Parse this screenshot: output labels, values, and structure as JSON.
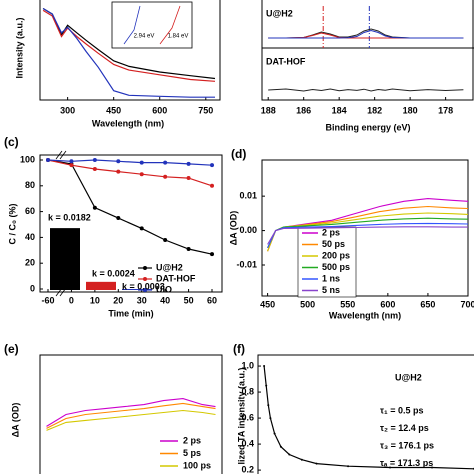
{
  "chart_data": [
    {
      "type": "line",
      "y_label": "Intensity (a.u.)",
      "x_label": "Wavelength (nm)",
      "xlim": [
        210,
        780
      ],
      "xticks": [
        300,
        450,
        600,
        750
      ],
      "ylim": [
        0,
        1.05
      ],
      "x": [
        220,
        250,
        280,
        300,
        330,
        360,
        400,
        450,
        500,
        600,
        700,
        780
      ],
      "series": [
        {
          "color": "#000000",
          "values": [
            0.98,
            0.92,
            0.7,
            0.8,
            0.72,
            0.64,
            0.54,
            0.42,
            0.36,
            0.3,
            0.26,
            0.23
          ]
        },
        {
          "color": "#d42020",
          "values": [
            0.96,
            0.9,
            0.68,
            0.77,
            0.68,
            0.6,
            0.5,
            0.38,
            0.32,
            0.27,
            0.22,
            0.2
          ]
        },
        {
          "color": "#2233bb",
          "values": [
            0.98,
            0.92,
            0.72,
            0.78,
            0.66,
            0.52,
            0.35,
            0.1,
            0.05,
            0.04,
            0.03,
            0.03
          ]
        }
      ],
      "annotations": [
        "2.94 eV",
        "1.84 eV"
      ]
    },
    {
      "type": "line",
      "x_label": "Binding energy (eV)",
      "xlim": [
        188.35,
        176.4
      ],
      "xticks": [
        188,
        186,
        184,
        182,
        180,
        178
      ],
      "ylim": [
        0,
        10
      ],
      "x": [
        188,
        187,
        186,
        185.5,
        185,
        184.5,
        184,
        183.5,
        183,
        182.6,
        182.2,
        181.8,
        181.4,
        181,
        180,
        179,
        178,
        177
      ],
      "series": [
        {
          "name": "U@H2",
          "color": "#222222",
          "values": [
            6.2,
            6.2,
            6.25,
            6.5,
            6.8,
            6.6,
            6.3,
            6.3,
            6.5,
            6.9,
            7.1,
            6.9,
            6.5,
            6.3,
            6.2,
            6.2,
            6.2,
            6.2
          ]
        },
        {
          "color": "#d42020",
          "values": [
            6.2,
            6.2,
            6.25,
            6.45,
            6.7,
            6.5,
            6.25,
            6.2,
            6.2,
            6.2,
            6.2,
            6.2,
            6.2,
            6.2,
            6.2,
            6.2,
            6.2,
            6.2
          ]
        },
        {
          "color": "#2233bb",
          "values": [
            6.2,
            6.2,
            6.2,
            6.2,
            6.2,
            6.2,
            6.2,
            6.22,
            6.35,
            6.75,
            6.95,
            6.75,
            6.4,
            6.25,
            6.2,
            6.2,
            6.2,
            6.2
          ]
        },
        {
          "name": "DAT-HOF",
          "color": "#222222",
          "values": [
            1.0,
            1.1,
            0.9,
            1.05,
            0.95,
            1.1,
            0.92,
            1.04,
            0.96,
            1.08,
            0.9,
            1.05,
            0.97,
            1.1,
            0.93,
            1.04,
            0.95,
            1.02
          ]
        }
      ],
      "peaks": [
        {
          "value": 184.9,
          "color": "#d42020"
        },
        {
          "value": 182.3,
          "color": "#2233bb"
        }
      ]
    },
    {
      "type": "line",
      "panel_label": "(c)",
      "y_label": "C / C₀ (%)",
      "x_label": "Time (min)",
      "categories": [
        "-60",
        "0",
        "10",
        "20",
        "30",
        "40",
        "50",
        "60"
      ],
      "ylim": [
        0,
        100
      ],
      "yticks": [
        0,
        20,
        40,
        60,
        80,
        100
      ],
      "series": [
        {
          "name": "U@H2",
          "color": "#000000",
          "values": [
            100,
            97,
            63,
            55,
            47,
            38,
            31,
            27
          ]
        },
        {
          "name": "DAT-HOF",
          "color": "#d42020",
          "values": [
            100,
            96,
            93,
            91,
            89,
            87,
            86,
            80
          ]
        },
        {
          "name": "UiO",
          "color": "#2233bb",
          "values": [
            100,
            99,
            100,
            99,
            98,
            98,
            97,
            96
          ]
        }
      ]
    },
    {
      "type": "bar",
      "values": [
        0.0182,
        0.0024,
        0.0003
      ],
      "value_labels": [
        "k = 0.0182",
        "k = 0.0024",
        "k = 0.0003"
      ],
      "colors": [
        "#000000",
        "#d42020",
        "#2233bb"
      ],
      "ylim": [
        0,
        0.02
      ]
    },
    {
      "type": "line",
      "panel_label": "(d)",
      "y_label": "ΔA (OD)",
      "x_label": "Wavelength (nm)",
      "xlim": [
        443,
        700
      ],
      "xticks": [
        450,
        500,
        550,
        600,
        650,
        700
      ],
      "ylim": [
        -0.019,
        0.0205
      ],
      "yticks": [
        -0.01,
        {
          "value": 0,
          "label": "0.00"
        },
        0.01
      ],
      "x": [
        450,
        460,
        470,
        500,
        530,
        560,
        590,
        620,
        650,
        680,
        700
      ],
      "series": [
        {
          "name": "2 ps",
          "color": "#cc00cc",
          "values": [
            -0.006,
            0.0,
            0.001,
            0.002,
            0.003,
            0.005,
            0.007,
            0.0085,
            0.0093,
            0.0088,
            0.0085
          ]
        },
        {
          "name": "50 ps",
          "color": "#ff8800",
          "values": [
            -0.006,
            0.0,
            0.001,
            0.0018,
            0.0026,
            0.004,
            0.0055,
            0.0065,
            0.007,
            0.0066,
            0.0064
          ]
        },
        {
          "name": "200 ps",
          "color": "#d4c800",
          "values": [
            -0.006,
            0.0,
            0.001,
            0.0016,
            0.0022,
            0.0032,
            0.0042,
            0.0048,
            0.0051,
            0.0049,
            0.0047
          ]
        },
        {
          "name": "500 ps",
          "color": "#22aa22",
          "values": [
            -0.005,
            0.0,
            0.001,
            0.0014,
            0.0018,
            0.0024,
            0.003,
            0.0034,
            0.0036,
            0.0034,
            0.0033
          ]
        },
        {
          "name": "1 ns",
          "color": "#3355ff",
          "values": [
            -0.005,
            0.0,
            0.0008,
            0.001,
            0.0012,
            0.0015,
            0.0018,
            0.002,
            0.0021,
            0.002,
            0.0019
          ]
        },
        {
          "name": "5 ns",
          "color": "#8844cc",
          "values": [
            -0.004,
            0.0,
            0.0006,
            0.0007,
            0.0008,
            0.0009,
            0.001,
            0.0011,
            0.0011,
            0.001,
            0.001
          ]
        }
      ]
    },
    {
      "type": "line",
      "panel_label": "(e)",
      "y_label": "ΔA (OD)",
      "xlim": [
        440,
        720
      ],
      "ylim": [
        -0.01,
        0.02
      ],
      "x": [
        450,
        480,
        510,
        540,
        570,
        600,
        630,
        660,
        690,
        710
      ],
      "series": [
        {
          "name": "2 ps",
          "color": "#cc00cc",
          "values": [
            0.002,
            0.005,
            0.006,
            0.0065,
            0.007,
            0.0075,
            0.0085,
            0.009,
            0.0075,
            0.007
          ]
        },
        {
          "name": "5 ps",
          "color": "#ff8800",
          "values": [
            0.0015,
            0.004,
            0.005,
            0.0055,
            0.006,
            0.0065,
            0.0072,
            0.0078,
            0.007,
            0.0065
          ]
        },
        {
          "name": "100 ps",
          "color": "#d4c800",
          "values": [
            0.001,
            0.003,
            0.0035,
            0.004,
            0.0045,
            0.005,
            0.0055,
            0.006,
            0.0055,
            0.005
          ]
        }
      ]
    },
    {
      "type": "line",
      "panel_label": "(f)",
      "y_label": "lized TA intensity (a.u.)",
      "xlim": [
        -1,
        100
      ],
      "ylim": [
        0.17,
        1.085
      ],
      "yticks": [
        0.2,
        0.4,
        0.6,
        0.8,
        {
          "value": 1,
          "label": "1.0"
        }
      ],
      "x": [
        0,
        1,
        2,
        3,
        5,
        8,
        12,
        18,
        25,
        40,
        60,
        80,
        100
      ],
      "series": [
        {
          "name": "U@H2",
          "color": "#000000",
          "values": [
            1.0,
            0.85,
            0.7,
            0.6,
            0.48,
            0.38,
            0.32,
            0.28,
            0.25,
            0.23,
            0.22,
            0.22,
            0.21
          ]
        }
      ],
      "annotations": [
        "τ₁ = 0.5 ps",
        "τ₂ = 12.4 ps",
        "τ₃ = 176.1 ps",
        "τₐ = 171.3 ps"
      ]
    }
  ]
}
